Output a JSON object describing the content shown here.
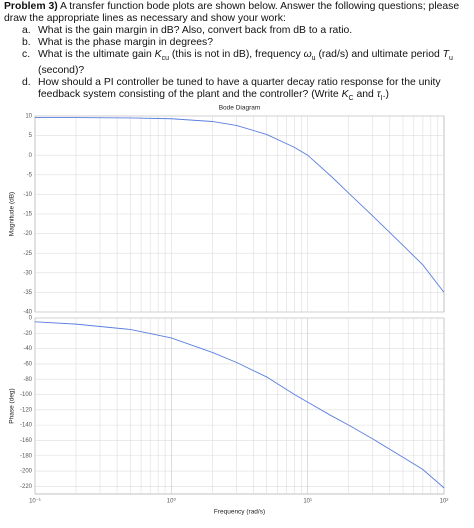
{
  "problem": {
    "label": "Problem 3)",
    "intro": "A transfer function bode plots are shown below. Answer the following questions; please draw the appropriate lines as necessary and show your work:",
    "items": [
      {
        "marker": "a.",
        "parts": [
          "What is the gain margin in dB? Also, convert back from dB to a ratio."
        ]
      },
      {
        "marker": "b.",
        "parts": [
          "What is the phase margin in degrees?"
        ]
      },
      {
        "marker": "c.",
        "parts": [
          "What is the ultimate gain ",
          "K",
          "cu",
          " (this is not in dB), frequency ",
          "ω",
          "u",
          " (rad/s) and ultimate period ",
          "T",
          "u",
          " (second)?"
        ]
      },
      {
        "marker": "d.",
        "parts": [
          "How should a PI controller be tuned to have a quarter decay ratio response for the unity feedback system consisting of the plant and the controller? (Write ",
          "K",
          "C",
          " and ",
          "τ",
          "I",
          ".)"
        ]
      }
    ]
  },
  "chart_data": [
    {
      "type": "line",
      "title": "Bode Diagram",
      "ylabel": "Magnitude (dB)",
      "xscale": "log",
      "grid": true,
      "x": [
        0.1,
        0.2,
        0.5,
        1,
        2,
        3,
        5,
        8,
        10,
        15,
        20,
        30,
        50,
        70,
        100
      ],
      "series": [
        {
          "color": "#5b7fe0",
          "values": [
            9.6,
            9.6,
            9.5,
            9.3,
            8.6,
            7.6,
            5.3,
            2.0,
            0,
            -5.5,
            -9.7,
            -15.5,
            -23,
            -28,
            -35
          ]
        }
      ],
      "xlim": [
        0.1,
        100
      ],
      "ylim": [
        -40,
        10
      ],
      "yticks": [
        10,
        5,
        0,
        -5,
        -10,
        -15,
        -20,
        -25,
        -30,
        -35,
        -40
      ]
    },
    {
      "type": "line",
      "ylabel": "Phase (deg)",
      "xlabel": "Frequency  (rad/s)",
      "xscale": "log",
      "grid": true,
      "x": [
        0.1,
        0.2,
        0.5,
        1,
        2,
        3,
        5,
        8,
        10,
        15,
        20,
        30,
        50,
        70,
        100
      ],
      "series": [
        {
          "color": "#5b7fe0",
          "values": [
            -5,
            -8,
            -15,
            -26,
            -45,
            -58,
            -77,
            -100,
            -110,
            -128,
            -140,
            -158,
            -182,
            -198,
            -222
          ]
        }
      ],
      "xlim": [
        0.1,
        100
      ],
      "ylim": [
        -230,
        0
      ],
      "xticks": [
        {
          "value": 0.1,
          "label": "10⁻¹"
        },
        {
          "value": 1,
          "label": "10⁰"
        },
        {
          "value": 10,
          "label": "10¹"
        },
        {
          "value": 100,
          "label": "10²"
        }
      ],
      "yticks": [
        0,
        -20,
        -40,
        -60,
        -80,
        -100,
        -120,
        -140,
        -160,
        -180,
        -200,
        -220
      ]
    }
  ]
}
